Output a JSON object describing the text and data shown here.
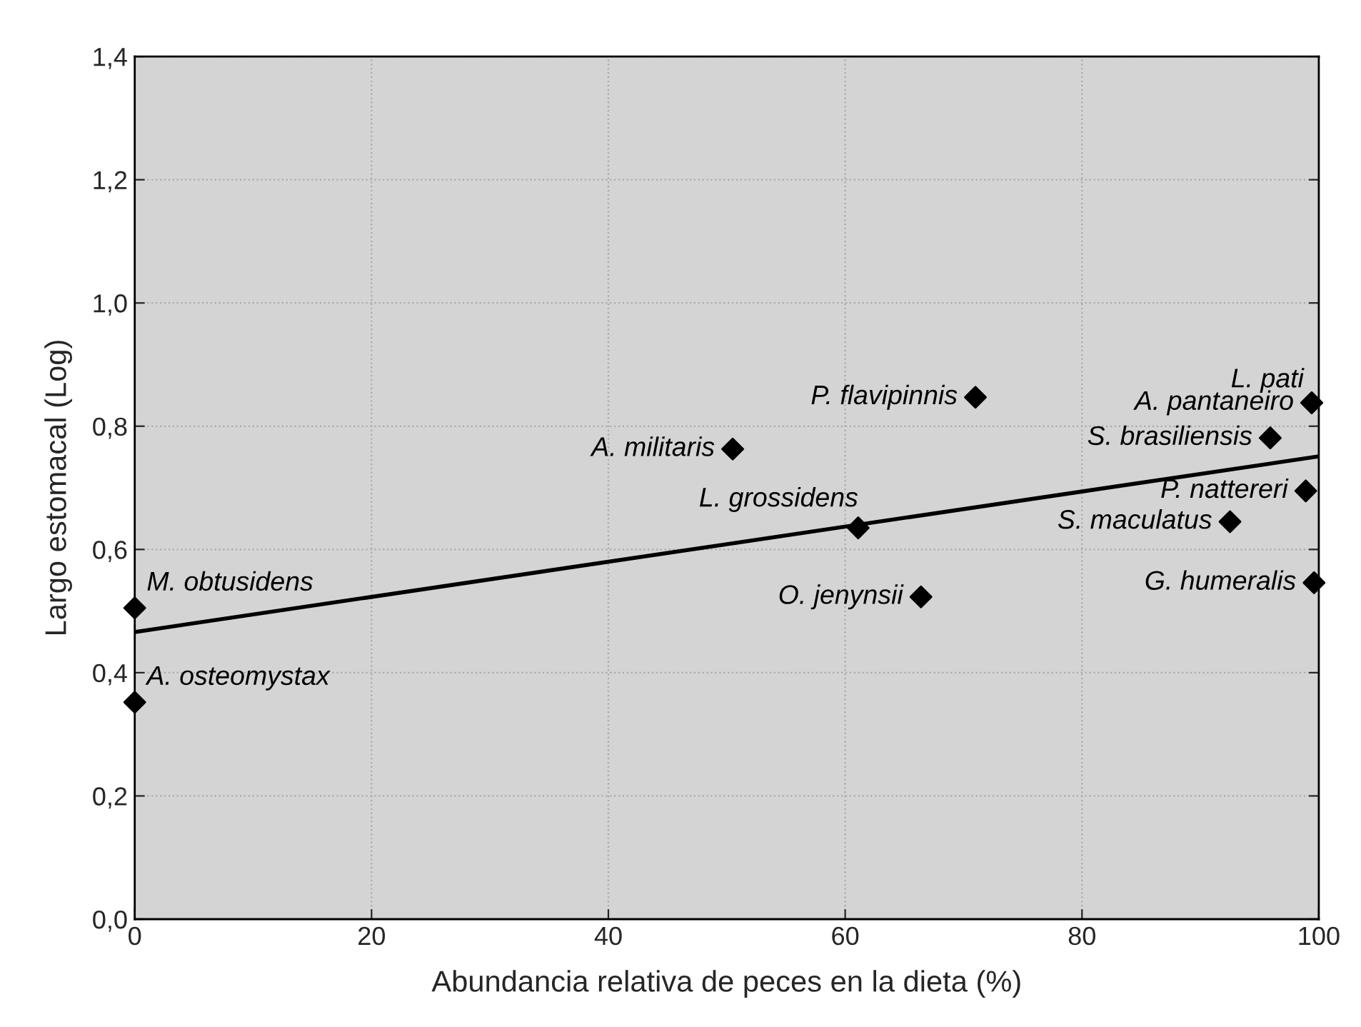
{
  "chart_data": {
    "type": "scatter",
    "xlabel": "Abundancia relativa de peces en la dieta (%)",
    "ylabel": "Largo estomacal (Log)",
    "xlim": [
      0,
      100
    ],
    "xticks": [
      0,
      20,
      40,
      60,
      80,
      100
    ],
    "ylim": [
      0,
      1.4
    ],
    "yticks": [
      {
        "value": 0,
        "label": "0,0"
      },
      {
        "value": 0.2,
        "label": "0,2"
      },
      {
        "value": 0.4,
        "label": "0,4"
      },
      {
        "value": 0.6,
        "label": "0,6"
      },
      {
        "value": 0.8,
        "label": "0,8"
      },
      {
        "value": 1.0,
        "label": "1,0"
      },
      {
        "value": 1.2,
        "label": "1,2"
      },
      {
        "value": 1.4,
        "label": "1,4"
      }
    ],
    "grid": true,
    "series": [
      {
        "marker": "diamond",
        "color": "#000000",
        "x": [
          0,
          0,
          50.5,
          71.0,
          61.1,
          66.4,
          99.4,
          99.4,
          95.9,
          98.9,
          92.5,
          99.6
        ],
        "values": [
          0.505,
          0.352,
          0.763,
          0.847,
          0.635,
          0.523,
          0.838,
          0.838,
          0.781,
          0.695,
          0.645,
          0.546
        ],
        "value_labels": [
          "M. obtusidens",
          "A. osteomystax",
          "A. militaris",
          "P. flavipinnis",
          "L. grossidens",
          "O. jenynsii",
          "L. pati",
          "A. pantaneiro",
          "S. brasiliensis",
          "P. nattereri",
          "S. maculatus",
          "G. humeralis"
        ]
      },
      {
        "type": "line",
        "color": "#000000",
        "x": [
          0,
          100
        ],
        "values": [
          0.466,
          0.751
        ]
      }
    ]
  }
}
